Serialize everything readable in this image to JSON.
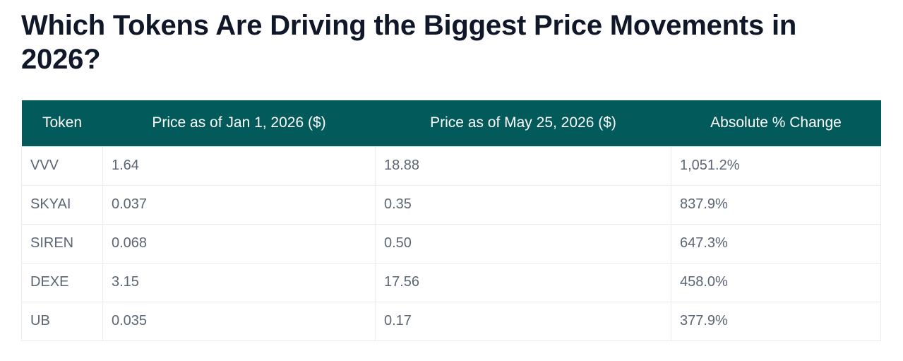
{
  "title": "Which Tokens Are Driving the Biggest Price Movements in 2026?",
  "table": {
    "headers": [
      "Token",
      "Price as of Jan 1, 2026 ($)",
      "Price as of May 25, 2026 ($)",
      "Absolute % Change"
    ],
    "rows": [
      [
        "VVV",
        "1.64",
        "18.88",
        "1,051.2%"
      ],
      [
        "SKYAI",
        "0.037",
        "0.35",
        "837.9%"
      ],
      [
        "SIREN",
        "0.068",
        "0.50",
        "647.3%"
      ],
      [
        "DEXE",
        "3.15",
        "17.56",
        "458.0%"
      ],
      [
        "UB",
        "0.035",
        "0.17",
        "377.9%"
      ]
    ]
  },
  "colors": {
    "header_bg": "#025a5b",
    "header_text": "#ffffff",
    "title_text": "#0f1729",
    "cell_text": "#5b6675",
    "border": "#e9ecef"
  }
}
